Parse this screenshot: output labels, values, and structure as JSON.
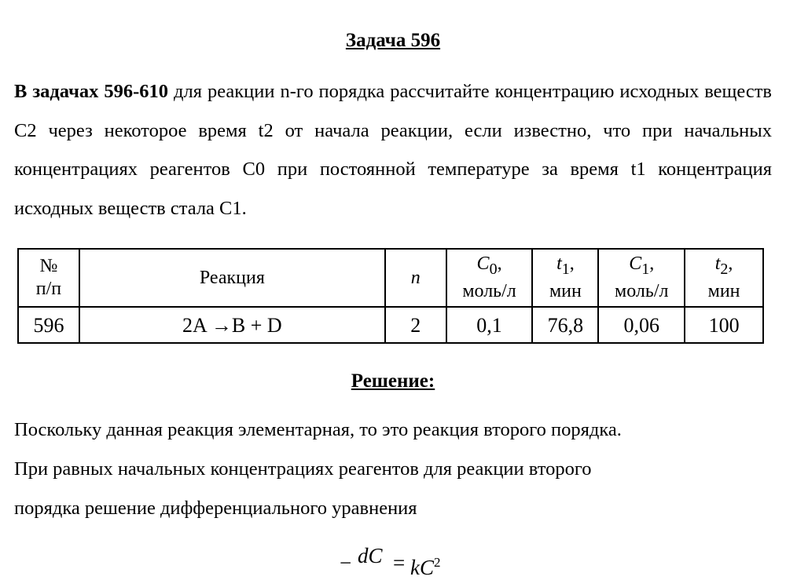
{
  "title": "Задача 596",
  "problem": {
    "bold_lead": "В задачах 596-610",
    "text": " для реакции n-го порядка рассчитайте концентрацию исходных веществ С2 через некоторое время t2 от начала реакции, если известно, что при начальных концентрациях реагентов С0 при постоянной температуре за время t1 концентрация исходных веществ стала С1."
  },
  "table": {
    "headers": [
      {
        "main": "№",
        "sub": "п/п"
      },
      {
        "main": "Реакция",
        "sub": ""
      },
      {
        "main": "n",
        "sub": ""
      },
      {
        "main": "C",
        "idx": "0",
        "tail": ",",
        "sub": "моль/л"
      },
      {
        "main": "t",
        "idx": "1",
        "tail": ",",
        "sub": "мин"
      },
      {
        "main": "C",
        "idx": "1",
        "tail": ",",
        "sub": "моль/л"
      },
      {
        "main": "t",
        "idx": "2",
        "tail": ",",
        "sub": "мин"
      }
    ],
    "row": [
      "596",
      "2A →B + D",
      "2",
      "0,1",
      "76,8",
      "0,06",
      "100"
    ]
  },
  "solution": {
    "heading": "Решение:",
    "lines": [
      "Поскольку данная реакция элементарная, то это реакция второго порядка.",
      "При равных начальных концентрациях реагентов для реакции второго",
      "порядка решение дифференциального уравнения"
    ],
    "formula": {
      "minus": "−",
      "numerator": "dC",
      "equals": "=",
      "rhs": "kC",
      "power": "2"
    }
  }
}
